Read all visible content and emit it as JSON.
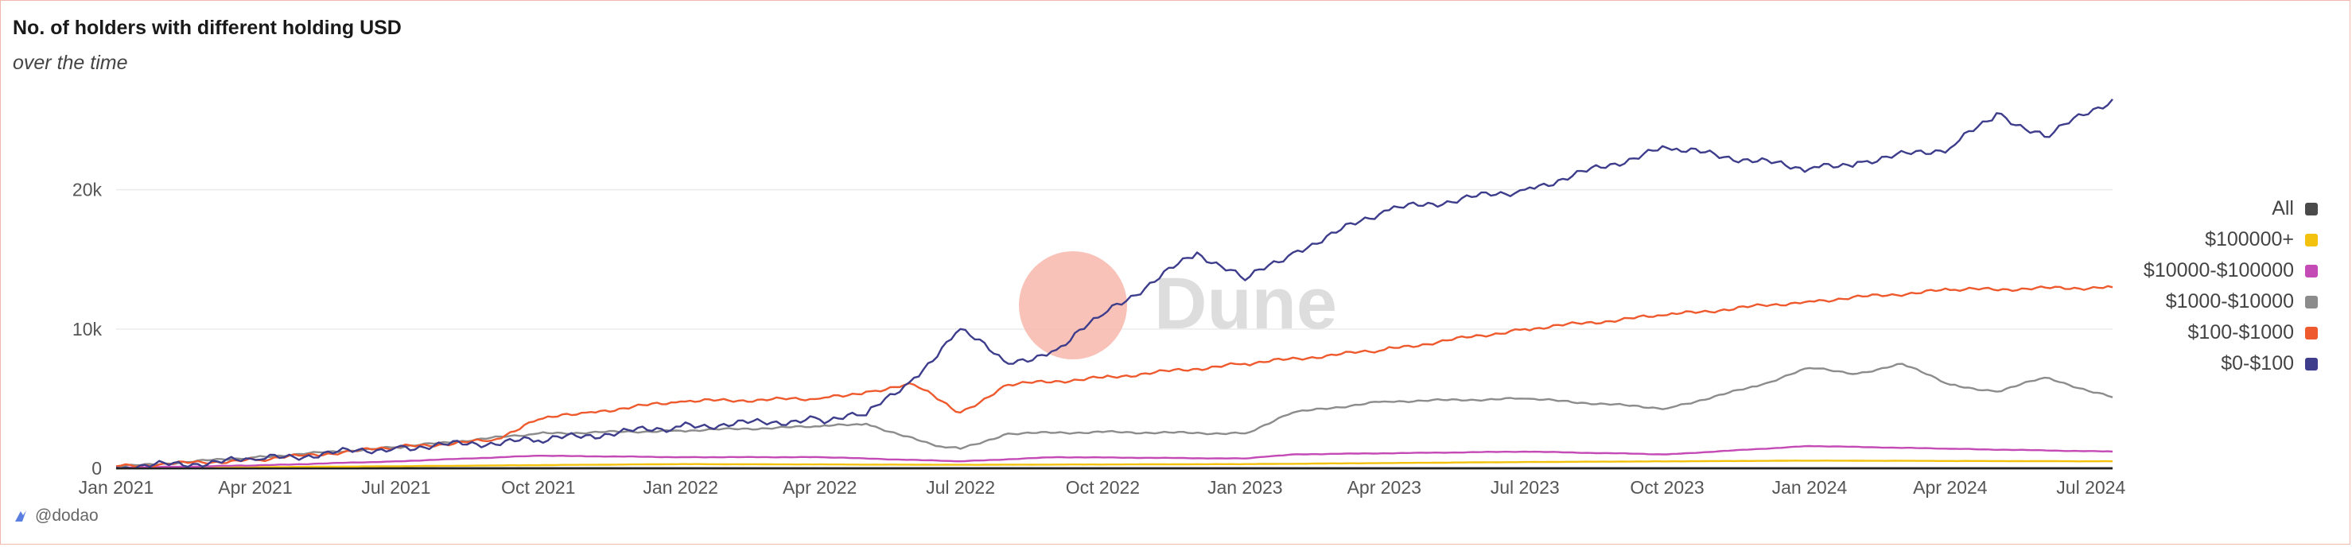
{
  "header": {
    "title": "No. of holders with different holding USD",
    "subtitle": "over the time"
  },
  "watermark": {
    "text": "Dune",
    "circle_color": "#f7b7ac",
    "overlap_color": "#c9c8e8"
  },
  "footer": {
    "author": "@dodao"
  },
  "colors": {
    "gridline": "#ececec",
    "axis": "#222222"
  },
  "chart_data": {
    "type": "line",
    "title": "No. of holders with different holding USD",
    "subtitle": "over the time",
    "xlabel": "",
    "ylabel": "",
    "ylim": [
      0,
      27000
    ],
    "x_range": [
      "2021-01-01",
      "2024-07-15"
    ],
    "x_ticks": [
      "Jan 2021",
      "Apr 2021",
      "Jul 2021",
      "Oct 2021",
      "Jan 2022",
      "Apr 2022",
      "Jul 2022",
      "Oct 2022",
      "Jan 2023",
      "Apr 2023",
      "Jul 2023",
      "Oct 2023",
      "Jan 2024",
      "Apr 2024",
      "Jul 2024"
    ],
    "x_tick_dates": [
      "2021-01-01",
      "2021-04-01",
      "2021-07-01",
      "2021-10-01",
      "2022-01-01",
      "2022-04-01",
      "2022-07-01",
      "2022-10-01",
      "2023-01-01",
      "2023-04-01",
      "2023-07-01",
      "2023-10-01",
      "2024-01-01",
      "2024-04-01",
      "2024-07-01"
    ],
    "y_ticks": [
      0,
      10000,
      20000
    ],
    "y_tick_labels": [
      "0",
      "10k",
      "20k"
    ],
    "grid": true,
    "legend_placement": "right",
    "legend": [
      "All",
      "$100000+",
      "$10000-$100000",
      "$1000-$10000",
      "$100-$1000",
      "$0-$100"
    ],
    "series": [
      {
        "name": "All",
        "color": "#4a4a4a",
        "points": [
          [
            "2021-01-01",
            0
          ],
          [
            "2024-07-15",
            0
          ]
        ]
      },
      {
        "name": "$100000+",
        "color": "#f2c20f",
        "points": [
          [
            "2021-01-01",
            20
          ],
          [
            "2021-07-01",
            150
          ],
          [
            "2022-01-01",
            300
          ],
          [
            "2022-07-01",
            250
          ],
          [
            "2023-01-01",
            300
          ],
          [
            "2023-07-01",
            450
          ],
          [
            "2024-01-01",
            550
          ],
          [
            "2024-07-15",
            500
          ]
        ]
      },
      {
        "name": "$10000-$100000",
        "color": "#c44ab5",
        "points": [
          [
            "2021-01-01",
            50
          ],
          [
            "2021-04-01",
            200
          ],
          [
            "2021-07-01",
            500
          ],
          [
            "2021-10-01",
            900
          ],
          [
            "2022-01-01",
            800
          ],
          [
            "2022-04-01",
            800
          ],
          [
            "2022-07-01",
            500
          ],
          [
            "2022-09-01",
            800
          ],
          [
            "2023-01-01",
            700
          ],
          [
            "2023-02-01",
            1000
          ],
          [
            "2023-07-01",
            1200
          ],
          [
            "2023-10-01",
            1000
          ],
          [
            "2024-01-01",
            1600
          ],
          [
            "2024-04-01",
            1400
          ],
          [
            "2024-07-15",
            1200
          ]
        ]
      },
      {
        "name": "$1000-$10000",
        "color": "#8c8c8c",
        "points": [
          [
            "2021-01-01",
            100
          ],
          [
            "2021-04-01",
            800
          ],
          [
            "2021-07-01",
            1500
          ],
          [
            "2021-10-01",
            2500
          ],
          [
            "2022-01-01",
            2700
          ],
          [
            "2022-04-01",
            3000
          ],
          [
            "2022-05-01",
            3200
          ],
          [
            "2022-06-15",
            1600
          ],
          [
            "2022-07-01",
            1400
          ],
          [
            "2022-08-01",
            2500
          ],
          [
            "2022-10-01",
            2600
          ],
          [
            "2023-01-01",
            2500
          ],
          [
            "2023-02-01",
            4000
          ],
          [
            "2023-04-01",
            4800
          ],
          [
            "2023-07-01",
            5000
          ],
          [
            "2023-10-01",
            4300
          ],
          [
            "2023-12-01",
            6000
          ],
          [
            "2024-01-01",
            7200
          ],
          [
            "2024-02-01",
            6800
          ],
          [
            "2024-03-01",
            7500
          ],
          [
            "2024-04-01",
            6000
          ],
          [
            "2024-05-01",
            5500
          ],
          [
            "2024-06-01",
            6500
          ],
          [
            "2024-07-15",
            5100
          ]
        ]
      },
      {
        "name": "$100-$1000",
        "color": "#ee5a2e",
        "points": [
          [
            "2021-01-01",
            150
          ],
          [
            "2021-04-01",
            600
          ],
          [
            "2021-07-01",
            1500
          ],
          [
            "2021-09-01",
            2000
          ],
          [
            "2021-10-01",
            3500
          ],
          [
            "2021-11-01",
            4000
          ],
          [
            "2022-01-01",
            4800
          ],
          [
            "2022-04-01",
            5000
          ],
          [
            "2022-05-01",
            5500
          ],
          [
            "2022-06-01",
            6000
          ],
          [
            "2022-07-01",
            4000
          ],
          [
            "2022-08-01",
            6000
          ],
          [
            "2022-10-01",
            6500
          ],
          [
            "2023-01-01",
            7500
          ],
          [
            "2023-04-01",
            8500
          ],
          [
            "2023-07-01",
            10000
          ],
          [
            "2023-10-01",
            11000
          ],
          [
            "2024-01-01",
            12000
          ],
          [
            "2024-04-01",
            12800
          ],
          [
            "2024-07-15",
            13000
          ]
        ]
      },
      {
        "name": "$0-$100",
        "color": "#3e3d8c",
        "points": [
          [
            "2021-01-01",
            50
          ],
          [
            "2021-04-01",
            600
          ],
          [
            "2021-07-01",
            1500
          ],
          [
            "2021-10-01",
            2000
          ],
          [
            "2022-01-01",
            3000
          ],
          [
            "2022-04-01",
            3500
          ],
          [
            "2022-05-01",
            3800
          ],
          [
            "2022-06-01",
            6500
          ],
          [
            "2022-07-01",
            10000
          ],
          [
            "2022-08-01",
            7500
          ],
          [
            "2022-09-01",
            8500
          ],
          [
            "2022-10-01",
            11000
          ],
          [
            "2022-12-01",
            15500
          ],
          [
            "2023-01-01",
            13500
          ],
          [
            "2023-02-01",
            15500
          ],
          [
            "2023-04-01",
            18500
          ],
          [
            "2023-07-01",
            20000
          ],
          [
            "2023-10-01",
            23000
          ],
          [
            "2024-01-01",
            21500
          ],
          [
            "2024-02-01",
            22000
          ],
          [
            "2024-04-01",
            23000
          ],
          [
            "2024-05-01",
            25500
          ],
          [
            "2024-06-01",
            23800
          ],
          [
            "2024-07-15",
            26500
          ]
        ]
      }
    ]
  }
}
